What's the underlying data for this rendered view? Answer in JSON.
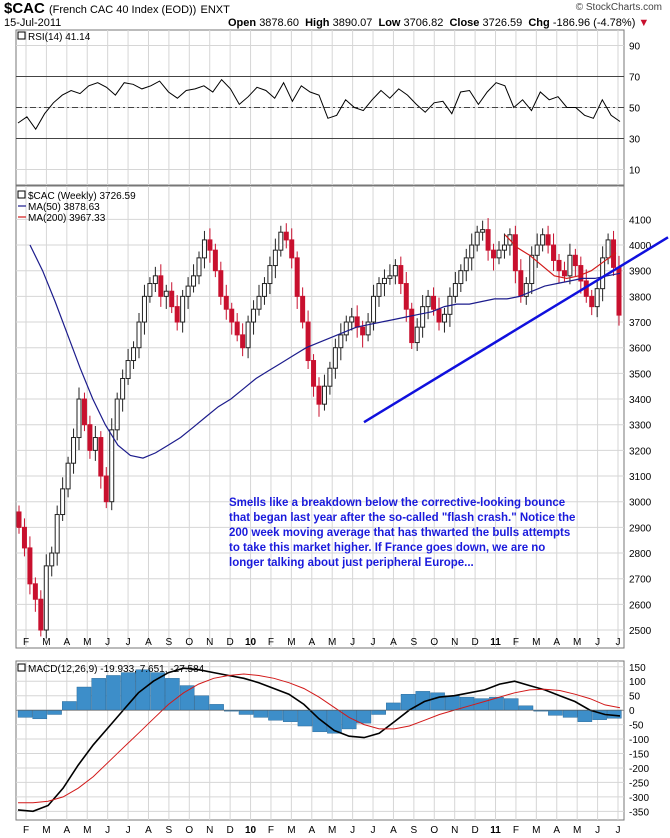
{
  "header": {
    "symbol": "$CAC",
    "name": "(French CAC 40 Index (EOD))",
    "exchange": "ENXT",
    "date": "15-Jul-2011",
    "open_label": "Open",
    "open": "3878.60",
    "high_label": "High",
    "high": "3890.07",
    "low_label": "Low",
    "low": "3706.82",
    "close_label": "Close",
    "close": "3726.59",
    "chg_label": "Chg",
    "chg": "-186.96 (-4.78%)",
    "credit": "© StockCharts.com"
  },
  "annotation": "Smells like a breakdown below the corrective-looking bounce that began last year after the so-called \"flash crash.\" Notice the 200 week moving average that has thwarted the bulls attempts to take this market higher. If France goes down, we are no longer talking about just peripheral Europe...",
  "colors": {
    "up": "#222222",
    "down": "#c8102e",
    "ma50": "#1c1c8c",
    "ma200": "#d21919",
    "trend": "#1010dd",
    "hist": "#3d8ec9"
  },
  "chart_data": [
    {
      "type": "line",
      "panel": "rsi",
      "label": "RSI(14) 41.14",
      "ylim": [
        0,
        100
      ],
      "y_ticks": [
        10,
        30,
        50,
        70,
        90
      ],
      "levels": [
        30,
        50,
        70
      ],
      "values": [
        40,
        44,
        36,
        46,
        53,
        58,
        61,
        59,
        64,
        66,
        63,
        58,
        66,
        65,
        62,
        64,
        67,
        60,
        56,
        61,
        62,
        64,
        60,
        68,
        62,
        52,
        57,
        63,
        61,
        56,
        66,
        54,
        64,
        60,
        58,
        43,
        45,
        55,
        50,
        48,
        55,
        61,
        56,
        62,
        58,
        52,
        47,
        53,
        54,
        46,
        60,
        61,
        52,
        60,
        66,
        64,
        50,
        55,
        48,
        60,
        55,
        57,
        50,
        50,
        45,
        43,
        55,
        45,
        41
      ]
    },
    {
      "type": "candlestick",
      "panel": "price",
      "title": "$CAC (Weekly) 3726.59",
      "legend": [
        "$CAC (Weekly) 3726.59",
        "MA(50) 3878.63",
        "MA(200) 3967.33"
      ],
      "ylim": [
        2430,
        4230
      ],
      "y_ticks": [
        2500,
        2600,
        2700,
        2800,
        2900,
        3000,
        3100,
        3200,
        3300,
        3400,
        3500,
        3600,
        3700,
        3800,
        3900,
        4000,
        4100
      ],
      "x_ticks": [
        "F",
        "M",
        "A",
        "M",
        "J",
        "J",
        "A",
        "S",
        "O",
        "N",
        "D",
        "10",
        "F",
        "M",
        "A",
        "M",
        "J",
        "J",
        "A",
        "S",
        "O",
        "N",
        "D",
        "11",
        "F",
        "M",
        "A",
        "M",
        "J",
        "J"
      ],
      "close": [
        2900,
        2820,
        2680,
        2620,
        2500,
        2750,
        2800,
        2950,
        3050,
        3150,
        3250,
        3400,
        3300,
        3200,
        3250,
        3100,
        3000,
        3280,
        3400,
        3480,
        3550,
        3600,
        3700,
        3800,
        3850,
        3880,
        3800,
        3820,
        3760,
        3700,
        3800,
        3840,
        3880,
        3950,
        4020,
        3980,
        3900,
        3800,
        3750,
        3700,
        3650,
        3600,
        3700,
        3750,
        3800,
        3850,
        3920,
        3980,
        4050,
        4020,
        3950,
        3800,
        3700,
        3550,
        3450,
        3380,
        3450,
        3520,
        3600,
        3650,
        3700,
        3720,
        3680,
        3650,
        3700,
        3800,
        3850,
        3870,
        3880,
        3920,
        3850,
        3750,
        3620,
        3680,
        3760,
        3800,
        3750,
        3700,
        3730,
        3800,
        3850,
        3900,
        3950,
        4000,
        4050,
        4060,
        3980,
        3950,
        3980,
        4000,
        4040,
        3900,
        3800,
        3850,
        3960,
        4000,
        4040,
        4000,
        3940,
        3900,
        3880,
        3960,
        3920,
        3860,
        3800,
        3760,
        3830,
        3950,
        4020,
        3913,
        3727
      ],
      "ma50": [
        4000,
        3900,
        3780,
        3650,
        3520,
        3400,
        3300,
        3220,
        3180,
        3170,
        3190,
        3220,
        3250,
        3290,
        3330,
        3370,
        3400,
        3440,
        3480,
        3510,
        3540,
        3570,
        3600,
        3620,
        3640,
        3660,
        3680,
        3690,
        3700,
        3710,
        3720,
        3730,
        3740,
        3760,
        3770,
        3770,
        3780,
        3790,
        3790,
        3800,
        3820,
        3840,
        3850,
        3860,
        3870,
        3870,
        3880,
        3890
      ],
      "ma200": [
        4040,
        3990,
        3960,
        3920,
        3880,
        3870,
        3880,
        3900,
        3935,
        3970
      ],
      "trendline": [
        3310,
        4030
      ]
    },
    {
      "type": "line",
      "panel": "macd",
      "label": "MACD(12,26,9) -19.933, 7.651, -27.584",
      "ylim": [
        -380,
        170
      ],
      "y_ticks": [
        150,
        100,
        50,
        0,
        -50,
        -100,
        -150,
        -200,
        -250,
        -300,
        -350
      ],
      "x_ticks": [
        "F",
        "M",
        "A",
        "M",
        "J",
        "J",
        "A",
        "S",
        "O",
        "N",
        "D",
        "10",
        "F",
        "M",
        "A",
        "M",
        "J",
        "J",
        "A",
        "S",
        "O",
        "N",
        "D",
        "11",
        "F",
        "M",
        "A",
        "M",
        "J",
        "J"
      ],
      "macd": [
        -345,
        -350,
        -330,
        -270,
        -190,
        -120,
        -60,
        0,
        60,
        100,
        130,
        145,
        140,
        130,
        120,
        110,
        95,
        75,
        55,
        20,
        -30,
        -70,
        -90,
        -95,
        -80,
        -40,
        0,
        30,
        45,
        50,
        60,
        70,
        90,
        100,
        85,
        70,
        50,
        30,
        0,
        -15,
        -20
      ],
      "signal": [
        -320,
        -320,
        -315,
        -300,
        -270,
        -230,
        -180,
        -130,
        -80,
        -30,
        20,
        60,
        90,
        110,
        120,
        125,
        120,
        110,
        95,
        75,
        45,
        10,
        -25,
        -50,
        -65,
        -65,
        -55,
        -35,
        -15,
        0,
        15,
        30,
        45,
        60,
        70,
        72,
        68,
        55,
        40,
        18,
        8
      ],
      "histogram": [
        -25,
        -30,
        -15,
        30,
        80,
        110,
        120,
        130,
        140,
        130,
        110,
        85,
        50,
        20,
        0,
        -15,
        -25,
        -35,
        -40,
        -55,
        -75,
        -80,
        -65,
        -45,
        -15,
        25,
        55,
        65,
        60,
        50,
        45,
        40,
        45,
        40,
        15,
        -2,
        -18,
        -25,
        -40,
        -33,
        -28
      ]
    }
  ]
}
